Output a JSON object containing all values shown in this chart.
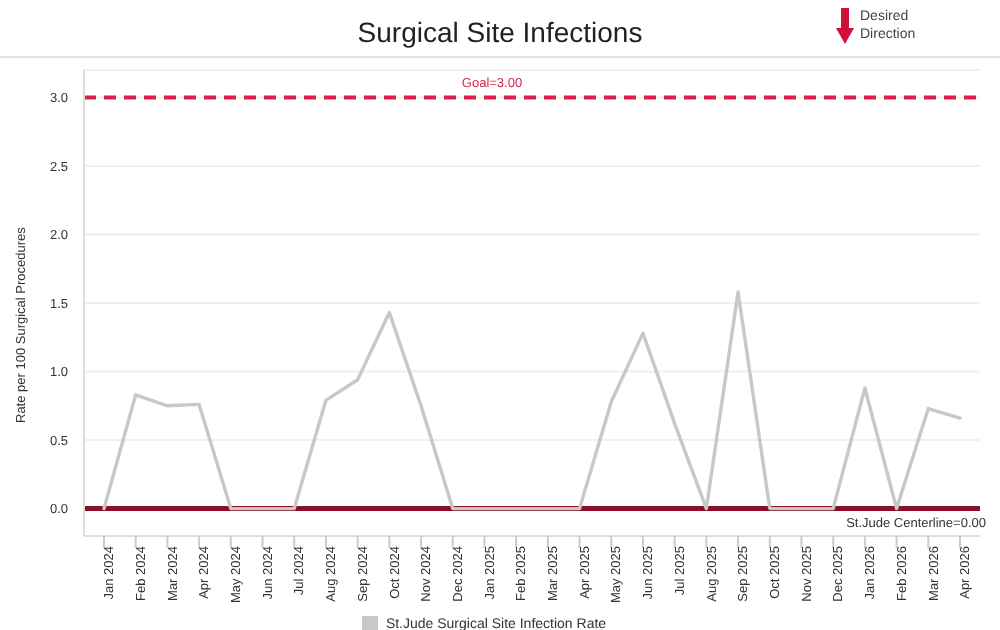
{
  "chart_data": {
    "type": "line",
    "title": "Surgical Site Infections",
    "ylabel": "Rate per 100 Surgical Procedures",
    "annotations": [
      "Desired Direction"
    ],
    "categories": [
      "Jan 2024",
      "Feb 2024",
      "Mar 2024",
      "Apr 2024",
      "May 2024",
      "Jun 2024",
      "Jul 2024",
      "Aug 2024",
      "Sep 2024",
      "Oct 2024",
      "Nov 2024",
      "Dec 2024",
      "Jan 2025",
      "Feb 2025",
      "Mar 2025",
      "Apr 2025",
      "May 2025",
      "Jun 2025",
      "Jul 2025",
      "Aug 2025",
      "Sep 2025",
      "Oct 2025",
      "Nov 2025",
      "Dec 2025",
      "Jan 2026",
      "Feb 2026",
      "Mar 2026",
      "Apr 2026"
    ],
    "series": [
      {
        "name": "St.Jude Surgical Site Infection Rate",
        "color": "#c8c8c8",
        "values": [
          0,
          0.83,
          0.75,
          0.76,
          0,
          0,
          0,
          0.79,
          0.94,
          1.43,
          0.75,
          0,
          0,
          0,
          0,
          0,
          0.78,
          1.28,
          0.62,
          0,
          1.58,
          0,
          0,
          0,
          0.88,
          0,
          0.73,
          0.66
        ]
      }
    ],
    "ylim": [
      -0.2,
      3.2
    ],
    "yticks": [
      {
        "value": 0,
        "label": "0.0"
      },
      {
        "value": 0.5,
        "label": "0.5"
      },
      {
        "value": 1,
        "label": "1.0"
      },
      {
        "value": 1.5,
        "label": "1.5"
      },
      {
        "value": 2,
        "label": "2.0"
      },
      {
        "value": 2.5,
        "label": "2.5"
      },
      {
        "value": 3,
        "label": "3.0"
      }
    ],
    "ref_lines": [
      {
        "axis": "y",
        "value": 3,
        "label": "Goal=3.00",
        "color": "#dc1e4a",
        "line_style": "dashed"
      },
      {
        "axis": "y",
        "value": 0,
        "label": "St.Jude Centerline=0.00",
        "color": "#8a0f2b",
        "line_style": "solid"
      }
    ],
    "grid": "y",
    "legend": "bottom",
    "marker": "none",
    "line_style": "solid"
  }
}
